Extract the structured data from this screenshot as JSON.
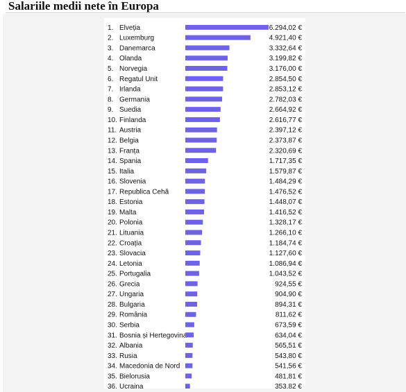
{
  "title": "Salariile medii nete în Europa",
  "colors": {
    "bar": "#6d63e4",
    "text": "#111111"
  },
  "chart_data": {
    "type": "bar",
    "orientation": "horizontal",
    "title": "Salariile medii nete în Europa",
    "xlim": [
      0,
      6294.02
    ],
    "grid": false,
    "ranks": [
      "1.",
      "2.",
      "3.",
      "4.",
      "5.",
      "6.",
      "7.",
      "8.",
      "9.",
      "10.",
      "11.",
      "12.",
      "13.",
      "14.",
      "15.",
      "16.",
      "17.",
      "18.",
      "19.",
      "20.",
      "21.",
      "22.",
      "23.",
      "24.",
      "25.",
      "26.",
      "27.",
      "28.",
      "29.",
      "30.",
      "31.",
      "32.",
      "33.",
      "34.",
      "35.",
      "36."
    ],
    "categories": [
      "Elveția",
      "Luxemburg",
      "Danemarca",
      "Olanda",
      "Norvegia",
      "Regatul Unit",
      "Irlanda",
      "Germania",
      "Suedia",
      "Finlanda",
      "Austria",
      "Belgia",
      "Franța",
      "Spania",
      "Italia",
      "Slovenia",
      "Republica Cehă",
      "Estonia",
      "Malta",
      "Polonia",
      "Lituania",
      "Croația",
      "Slovacia",
      "Letonia",
      "Portugalia",
      "Grecia",
      "Ungaria",
      "Bulgaria",
      "România",
      "Serbia",
      "Bosnia și Hertegovina",
      "Albania",
      "Rusia",
      "Macedonia de Nord",
      "Bielorusia",
      "Ucraina"
    ],
    "values": [
      6294.02,
      4921.4,
      3332.64,
      3199.82,
      3176.0,
      2854.5,
      2853.12,
      2782.03,
      2664.92,
      2616.77,
      2397.12,
      2373.87,
      2320.69,
      1717.35,
      1579.87,
      1484.29,
      1476.52,
      1448.07,
      1416.52,
      1328.17,
      1266.1,
      1184.74,
      1127.6,
      1086.94,
      1043.52,
      924.55,
      904.9,
      894.31,
      811.62,
      673.59,
      634.04,
      565.51,
      543.8,
      541.56,
      481.81,
      353.82
    ],
    "value_labels": [
      "6.294,02 €",
      "4.921,40 €",
      "3.332,64 €",
      "3.199,82 €",
      "3.176,00 €",
      "2.854,50 €",
      "2.853,12 €",
      "2.782,03 €",
      "2.664,92 €",
      "2.616,77 €",
      "2.397,12 €",
      "2.373,87 €",
      "2.320,69 €",
      "1.717,35 €",
      "1.579,87 €",
      "1.484,29 €",
      "1.476,52 €",
      "1.448,07 €",
      "1.416,52 €",
      "1.328,17 €",
      "1.266,10 €",
      "1.184,74 €",
      "1.127,60 €",
      "1.086,94 €",
      "1.043,52 €",
      "924,55 €",
      "904,90 €",
      "894,31 €",
      "811,62 €",
      "673,59 €",
      "634,04 €",
      "565,51 €",
      "543,80 €",
      "541,56 €",
      "481,81 €",
      "353,82 €"
    ]
  }
}
